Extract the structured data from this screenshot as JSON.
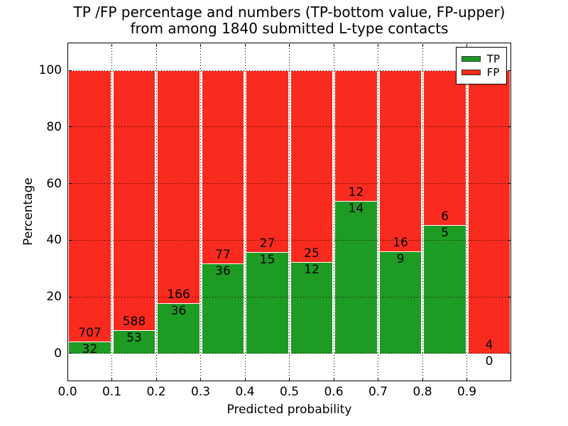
{
  "title": "TP /FP percentage and numbers (TP-bottom value, FP-upper)\nfrom among 1840 submitted L-type contacts",
  "chart_data": {
    "type": "bar",
    "stacked": true,
    "title": "TP /FP percentage and numbers (TP-bottom value, FP-upper) from among 1840 submitted L-type contacts",
    "total_contacts": 1840,
    "xlabel": "Predicted probability",
    "ylabel": "Percentage",
    "xlim": [
      0.0,
      1.0
    ],
    "ylim": [
      -9.8,
      109.8
    ],
    "bin_width": 0.1,
    "grid": true,
    "x_ticks": [
      "0.0",
      "0.1",
      "0.2",
      "0.3",
      "0.4",
      "0.5",
      "0.6",
      "0.7",
      "0.8",
      "0.9"
    ],
    "x_tick_values": [
      0.0,
      0.1,
      0.2,
      0.3,
      0.4,
      0.5,
      0.6,
      0.7,
      0.8,
      0.9
    ],
    "y_ticks": [
      "0",
      "20",
      "40",
      "60",
      "80",
      "100"
    ],
    "y_tick_values": [
      0,
      20,
      40,
      60,
      80,
      100
    ],
    "series": [
      {
        "name": "TP",
        "color": "#1e9b23",
        "counts": [
          32,
          53,
          36,
          36,
          15,
          12,
          14,
          9,
          5,
          0
        ]
      },
      {
        "name": "FP",
        "color": "#f92b1e",
        "counts": [
          707,
          588,
          166,
          77,
          27,
          25,
          12,
          16,
          6,
          4
        ]
      }
    ],
    "bins": [
      {
        "x0": 0.0,
        "tp": 32,
        "fp": 707,
        "tp_pct": 4.33
      },
      {
        "x0": 0.1,
        "tp": 53,
        "fp": 588,
        "tp_pct": 8.27
      },
      {
        "x0": 0.2,
        "tp": 36,
        "fp": 166,
        "tp_pct": 17.82
      },
      {
        "x0": 0.3,
        "tp": 36,
        "fp": 77,
        "tp_pct": 31.86
      },
      {
        "x0": 0.4,
        "tp": 15,
        "fp": 27,
        "tp_pct": 35.71
      },
      {
        "x0": 0.5,
        "tp": 12,
        "fp": 25,
        "tp_pct": 32.43
      },
      {
        "x0": 0.6,
        "tp": 14,
        "fp": 12,
        "tp_pct": 53.85
      },
      {
        "x0": 0.7,
        "tp": 9,
        "fp": 16,
        "tp_pct": 36.0
      },
      {
        "x0": 0.8,
        "tp": 5,
        "fp": 6,
        "tp_pct": 45.45
      },
      {
        "x0": 0.9,
        "tp": 0,
        "fp": 4,
        "tp_pct": 0.0
      }
    ],
    "legend": {
      "position": "upper right",
      "entries": [
        {
          "label": "TP",
          "color": "#1e9b23"
        },
        {
          "label": "FP",
          "color": "#f92b1e"
        }
      ]
    }
  },
  "colors": {
    "tp_green": "#1e9b23",
    "fp_red": "#f92b1e",
    "axis": "#000000",
    "background": "#ffffff"
  }
}
